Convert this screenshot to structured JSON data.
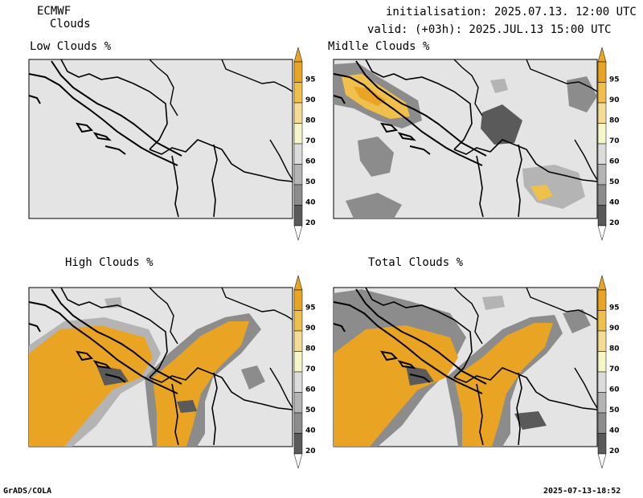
{
  "header": {
    "model": "ECMWF",
    "product": "Clouds",
    "init": "initialisation: 2025.07.13. 12:00 UTC",
    "valid": "valid: (+03h): 2025.JUL.13 15:00 UTC"
  },
  "panels": [
    {
      "title": "Low Clouds %"
    },
    {
      "title": "Midlle Clouds %"
    },
    {
      "title": "High Clouds %"
    },
    {
      "title": "Total Clouds %"
    }
  ],
  "legend": {
    "levels": [
      "95",
      "90",
      "80",
      "70",
      "60",
      "50",
      "40",
      "20"
    ],
    "colors": [
      "#e8a422",
      "#f0c04c",
      "#f4dc96",
      "#f6f6c8",
      "#dcdcdc",
      "#b4b4b4",
      "#8c8c8c",
      "#5a5a5a"
    ]
  },
  "footer": {
    "left": "GrADS/COLA",
    "right": "2025-07-13-18:52"
  }
}
